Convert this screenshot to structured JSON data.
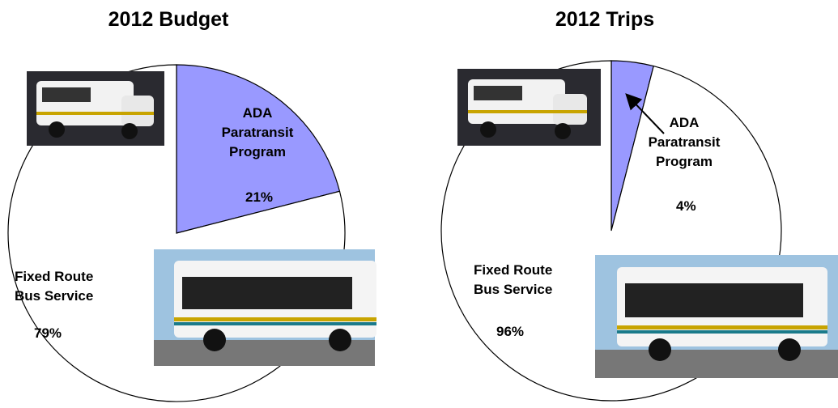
{
  "chart_data": [
    {
      "type": "pie",
      "title": "2012 Budget",
      "categories": [
        "ADA Paratransit Program",
        "Fixed Route Bus Service"
      ],
      "values": [
        21,
        79
      ],
      "value_labels": [
        "21%",
        "79%"
      ],
      "colors": [
        "#9999ff",
        "#ffffff"
      ]
    },
    {
      "type": "pie",
      "title": "2012 Trips",
      "categories": [
        "ADA Paratransit Program",
        "Fixed Route Bus Service"
      ],
      "values": [
        4,
        96
      ],
      "value_labels": [
        "4%",
        "96%"
      ],
      "colors": [
        "#9999ff",
        "#ffffff"
      ]
    }
  ]
}
